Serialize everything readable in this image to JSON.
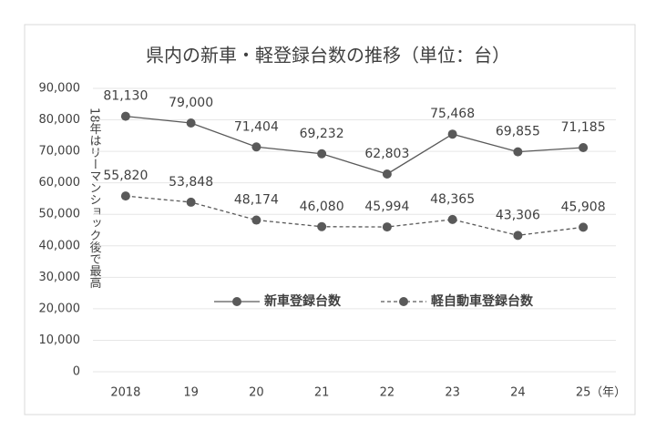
{
  "chart_data": {
    "type": "line",
    "title": "県内の新車・軽登録台数の推移（単位：台）",
    "categories": [
      "2018",
      "19",
      "20",
      "21",
      "22",
      "23",
      "24",
      "25"
    ],
    "x_label": "（年）",
    "annotation": "18年はリーマンショック後で最高",
    "ylim": [
      0,
      90000
    ],
    "yticks": [
      0,
      {
        "value": 10000,
        "label": "10,000"
      },
      {
        "value": 20000,
        "label": "20,000"
      },
      {
        "value": 30000,
        "label": "30,000"
      },
      {
        "value": 40000,
        "label": "40,000"
      },
      {
        "value": 50000,
        "label": "50,000"
      },
      {
        "value": 60000,
        "label": "60,000"
      },
      {
        "value": 70000,
        "label": "70,000"
      },
      {
        "value": 80000,
        "label": "80,000"
      },
      {
        "value": 90000,
        "label": "90,000"
      }
    ],
    "grid": true,
    "series": [
      {
        "name": "新車登録台数",
        "color": "#595959",
        "line_style": "solid",
        "values": [
          81130,
          79000,
          71404,
          69232,
          62803,
          75468,
          69855,
          71185
        ],
        "value_labels": [
          "81,130",
          "79,000",
          "71,404",
          "69,232",
          "62,803",
          "75,468",
          "69,855",
          "71,185"
        ]
      },
      {
        "name": "軽自動車登録台数",
        "color": "#595959",
        "line_style": "dashed",
        "values": [
          55820,
          53848,
          48174,
          46080,
          45994,
          48365,
          43306,
          45908
        ],
        "value_labels": [
          "55,820",
          "53,848",
          "48,174",
          "46,080",
          "45,994",
          "48,365",
          "43,306",
          "45,908"
        ]
      }
    ]
  }
}
